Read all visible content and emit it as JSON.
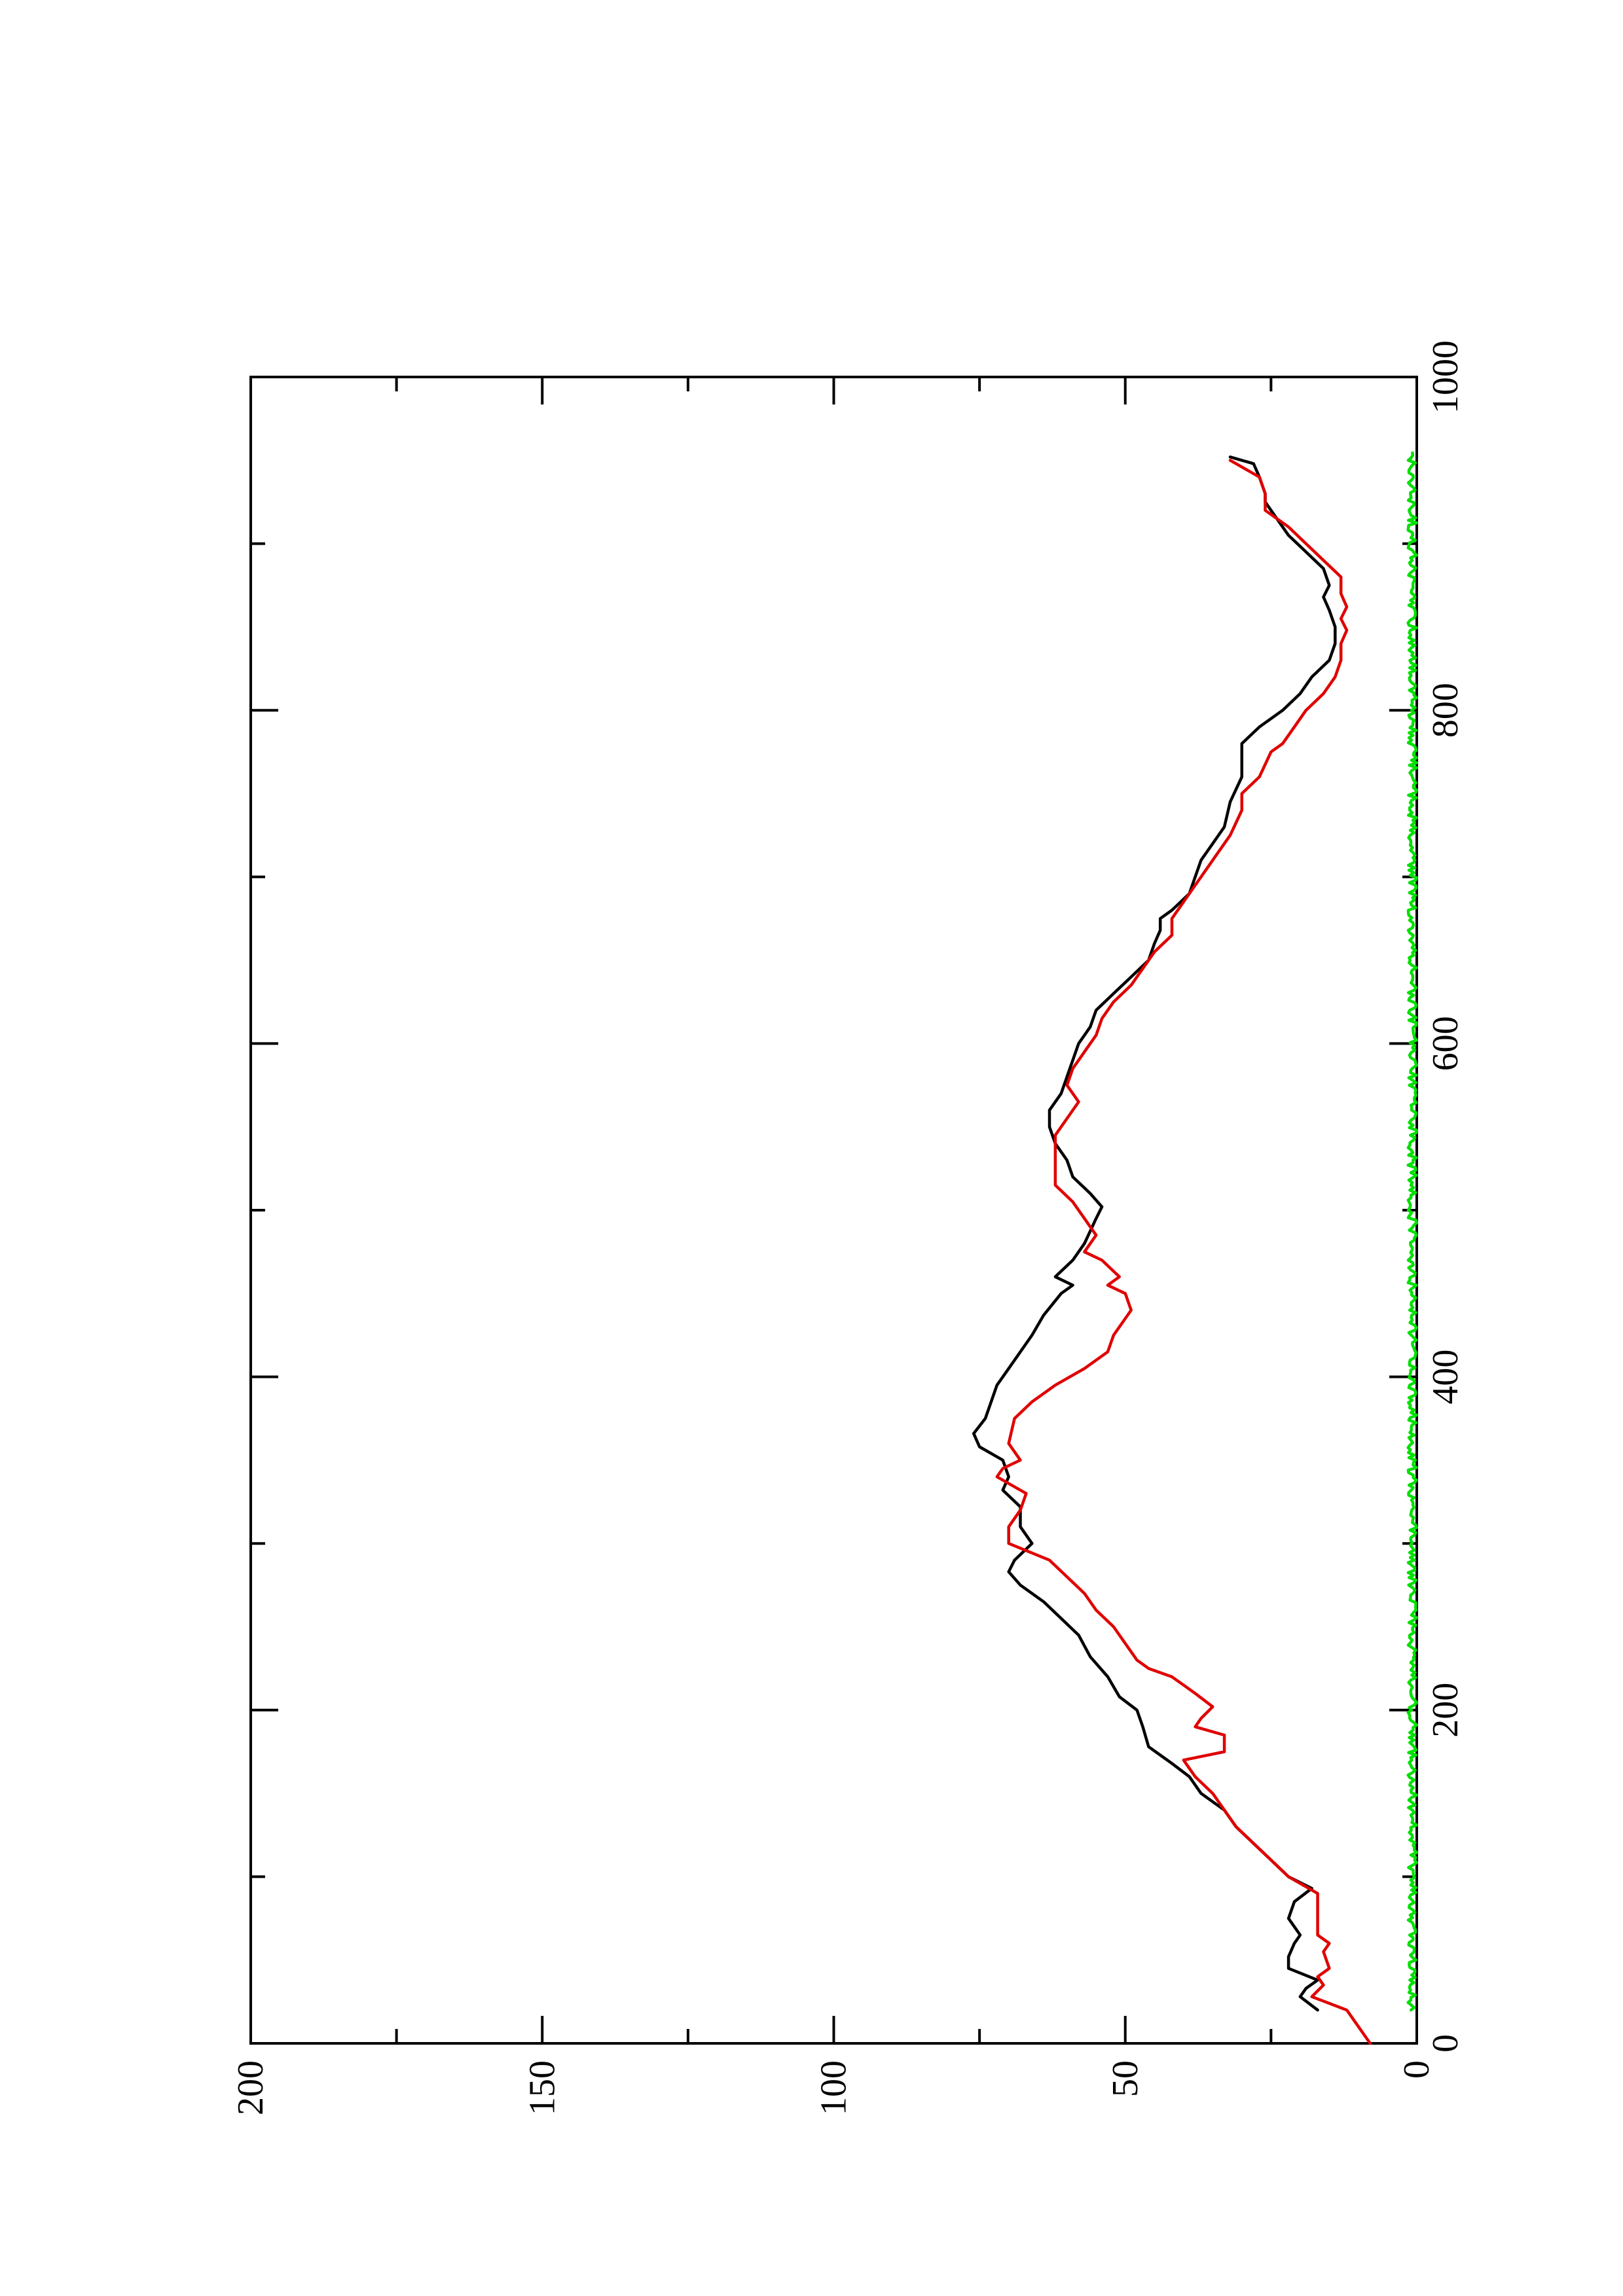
{
  "chart_data": {
    "type": "line",
    "title": "",
    "xlabel": "",
    "ylabel": "",
    "orientation": "rotated-90-ccw",
    "xlim": [
      0,
      1000
    ],
    "ylim": [
      0,
      200
    ],
    "x_ticks_major": [
      0,
      200,
      400,
      600,
      800,
      1000
    ],
    "x_ticks_minor": [
      100,
      300,
      500,
      700,
      900
    ],
    "y_ticks_major": [
      0,
      50,
      100,
      150,
      200
    ],
    "y_ticks_minor": [
      25,
      75,
      125,
      175
    ],
    "x_tick_labels": [
      "0",
      "200",
      "400",
      "600",
      "800",
      "1000"
    ],
    "y_tick_labels": [
      "0",
      "50",
      "100",
      "150",
      "200"
    ],
    "grid": false,
    "legend": "none",
    "series": [
      {
        "color": "#000000",
        "style": "solid",
        "points": [
          [
            20,
            17
          ],
          [
            28,
            20
          ],
          [
            33,
            19
          ],
          [
            38,
            17
          ],
          [
            45,
            22
          ],
          [
            52,
            22
          ],
          [
            60,
            21
          ],
          [
            65,
            20
          ],
          [
            75,
            22
          ],
          [
            85,
            21
          ],
          [
            93,
            18
          ],
          [
            100,
            22
          ],
          [
            110,
            25
          ],
          [
            120,
            28
          ],
          [
            130,
            31
          ],
          [
            140,
            33
          ],
          [
            150,
            37
          ],
          [
            160,
            39
          ],
          [
            168,
            42
          ],
          [
            178,
            46
          ],
          [
            190,
            47
          ],
          [
            200,
            48
          ],
          [
            208,
            51
          ],
          [
            220,
            53
          ],
          [
            232,
            56
          ],
          [
            245,
            58
          ],
          [
            255,
            61
          ],
          [
            265,
            64
          ],
          [
            275,
            68
          ],
          [
            283,
            70
          ],
          [
            290,
            69
          ],
          [
            300,
            66
          ],
          [
            310,
            68
          ],
          [
            322,
            68
          ],
          [
            332,
            71
          ],
          [
            340,
            70
          ],
          [
            350,
            71
          ],
          [
            358,
            75
          ],
          [
            366,
            76
          ],
          [
            375,
            74
          ],
          [
            385,
            73
          ],
          [
            395,
            72
          ],
          [
            405,
            70
          ],
          [
            415,
            68
          ],
          [
            425,
            66
          ],
          [
            437,
            64
          ],
          [
            450,
            61
          ],
          [
            455,
            59
          ],
          [
            460,
            62
          ],
          [
            470,
            59
          ],
          [
            480,
            57
          ],
          [
            495,
            55
          ],
          [
            502,
            54
          ],
          [
            510,
            56
          ],
          [
            520,
            59
          ],
          [
            530,
            60
          ],
          [
            540,
            62
          ],
          [
            550,
            63
          ],
          [
            560,
            63
          ],
          [
            570,
            61
          ],
          [
            580,
            60
          ],
          [
            590,
            59
          ],
          [
            600,
            58
          ],
          [
            610,
            56
          ],
          [
            620,
            55
          ],
          [
            630,
            52
          ],
          [
            640,
            49
          ],
          [
            650,
            46
          ],
          [
            660,
            45
          ],
          [
            668,
            44
          ],
          [
            675,
            44
          ],
          [
            680,
            42
          ],
          [
            690,
            39
          ],
          [
            700,
            38
          ],
          [
            710,
            37
          ],
          [
            720,
            35
          ],
          [
            730,
            33
          ],
          [
            745,
            32
          ],
          [
            760,
            30
          ],
          [
            770,
            30
          ],
          [
            780,
            30
          ],
          [
            790,
            27
          ],
          [
            800,
            23
          ],
          [
            810,
            20
          ],
          [
            820,
            18
          ],
          [
            830,
            15
          ],
          [
            840,
            14
          ],
          [
            850,
            14
          ],
          [
            860,
            15
          ],
          [
            868,
            16
          ],
          [
            875,
            15
          ],
          [
            885,
            16
          ],
          [
            895,
            19
          ],
          [
            905,
            22
          ],
          [
            915,
            24
          ],
          [
            925,
            26
          ],
          [
            930,
            26
          ],
          [
            940,
            27
          ],
          [
            948,
            28
          ],
          [
            952,
            32
          ]
        ]
      },
      {
        "color": "#e00000",
        "style": "solid",
        "points": [
          [
            0,
            8
          ],
          [
            20,
            12
          ],
          [
            28,
            18
          ],
          [
            35,
            16
          ],
          [
            40,
            17
          ],
          [
            45,
            15
          ],
          [
            55,
            16
          ],
          [
            60,
            15
          ],
          [
            65,
            17
          ],
          [
            90,
            17
          ],
          [
            100,
            22
          ],
          [
            110,
            25
          ],
          [
            120,
            28
          ],
          [
            130,
            31
          ],
          [
            140,
            33
          ],
          [
            150,
            35
          ],
          [
            160,
            38
          ],
          [
            170,
            40
          ],
          [
            175,
            33
          ],
          [
            185,
            33
          ],
          [
            190,
            38
          ],
          [
            195,
            37
          ],
          [
            202,
            35
          ],
          [
            210,
            38
          ],
          [
            215,
            40
          ],
          [
            220,
            42
          ],
          [
            225,
            46
          ],
          [
            230,
            48
          ],
          [
            240,
            50
          ],
          [
            250,
            52
          ],
          [
            260,
            55
          ],
          [
            270,
            57
          ],
          [
            280,
            60
          ],
          [
            290,
            63
          ],
          [
            300,
            70
          ],
          [
            310,
            70
          ],
          [
            320,
            68
          ],
          [
            330,
            67
          ],
          [
            340,
            72
          ],
          [
            345,
            71
          ],
          [
            350,
            68
          ],
          [
            360,
            70
          ],
          [
            375,
            69
          ],
          [
            385,
            66
          ],
          [
            395,
            62
          ],
          [
            405,
            57
          ],
          [
            415,
            53
          ],
          [
            425,
            52
          ],
          [
            435,
            50
          ],
          [
            440,
            49
          ],
          [
            450,
            50
          ],
          [
            455,
            53
          ],
          [
            460,
            51
          ],
          [
            470,
            54
          ],
          [
            475,
            57
          ],
          [
            485,
            55
          ],
          [
            495,
            57
          ],
          [
            505,
            59
          ],
          [
            515,
            62
          ],
          [
            545,
            62
          ],
          [
            555,
            60
          ],
          [
            565,
            58
          ],
          [
            575,
            60
          ],
          [
            585,
            59
          ],
          [
            595,
            57
          ],
          [
            605,
            55
          ],
          [
            615,
            54
          ],
          [
            625,
            52
          ],
          [
            635,
            49
          ],
          [
            645,
            47
          ],
          [
            655,
            45
          ],
          [
            665,
            42
          ],
          [
            675,
            42
          ],
          [
            685,
            40
          ],
          [
            695,
            38
          ],
          [
            705,
            36
          ],
          [
            715,
            34
          ],
          [
            725,
            32
          ],
          [
            740,
            30
          ],
          [
            750,
            30
          ],
          [
            760,
            27
          ],
          [
            775,
            25
          ],
          [
            780,
            23
          ],
          [
            790,
            21
          ],
          [
            800,
            19
          ],
          [
            810,
            16
          ],
          [
            820,
            14
          ],
          [
            830,
            13
          ],
          [
            840,
            13
          ],
          [
            848,
            12
          ],
          [
            855,
            13
          ],
          [
            862,
            12
          ],
          [
            870,
            13
          ],
          [
            880,
            13
          ],
          [
            890,
            16
          ],
          [
            900,
            19
          ],
          [
            910,
            22
          ],
          [
            920,
            26
          ],
          [
            930,
            26
          ],
          [
            940,
            27
          ],
          [
            950,
            32
          ]
        ]
      },
      {
        "color": "#00e000",
        "style": "solid",
        "noisy_baseline": true,
        "x_range": [
          20,
          955
        ],
        "y_range": [
          0,
          1.5
        ]
      }
    ]
  }
}
